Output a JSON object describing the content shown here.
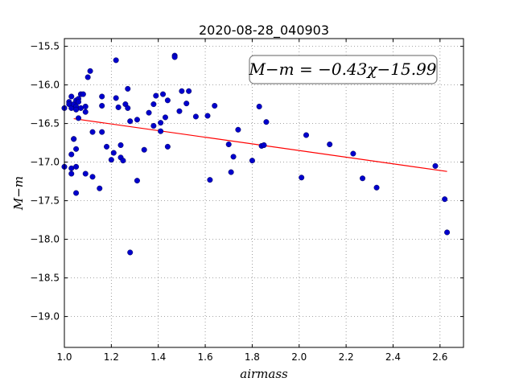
{
  "chart_data": {
    "type": "scatter",
    "title": "2020-08-28_040903",
    "xlabel": "airmass",
    "ylabel": "M−m",
    "xlim": [
      1.0,
      2.7
    ],
    "ylim": [
      -15.4,
      -19.4
    ],
    "x_ticks": [
      "1.0",
      "1.2",
      "1.4",
      "1.6",
      "1.8",
      "2.0",
      "2.2",
      "2.4",
      "2.6"
    ],
    "y_ticks": [
      "−15.5",
      "−16.0",
      "−16.5",
      "−17.0",
      "−17.5",
      "−18.0",
      "−18.5",
      "−19.0"
    ],
    "grid": true,
    "annotation": "M−m = −0.43χ−15.99",
    "point_color": "#0000cc",
    "fit_color": "#ff0000",
    "fit": {
      "slope": -0.43,
      "intercept": -15.99,
      "x_range": [
        1.04,
        2.63
      ]
    },
    "points": [
      [
        1.0,
        -16.3
      ],
      [
        1.0,
        -17.06
      ],
      [
        1.02,
        -16.22
      ],
      [
        1.02,
        -16.25
      ],
      [
        1.03,
        -16.15
      ],
      [
        1.03,
        -16.3
      ],
      [
        1.03,
        -16.9
      ],
      [
        1.03,
        -17.08
      ],
      [
        1.03,
        -17.15
      ],
      [
        1.04,
        -16.25
      ],
      [
        1.04,
        -16.7
      ],
      [
        1.04,
        -16.7
      ],
      [
        1.05,
        -16.28
      ],
      [
        1.05,
        -16.32
      ],
      [
        1.05,
        -16.2
      ],
      [
        1.05,
        -16.83
      ],
      [
        1.05,
        -17.06
      ],
      [
        1.05,
        -17.4
      ],
      [
        1.06,
        -16.18
      ],
      [
        1.06,
        -16.22
      ],
      [
        1.06,
        -16.43
      ],
      [
        1.07,
        -16.12
      ],
      [
        1.07,
        -16.3
      ],
      [
        1.08,
        -16.12
      ],
      [
        1.09,
        -16.28
      ],
      [
        1.09,
        -16.35
      ],
      [
        1.09,
        -17.15
      ],
      [
        1.1,
        -15.9
      ],
      [
        1.11,
        -15.82
      ],
      [
        1.12,
        -16.61
      ],
      [
        1.12,
        -17.19
      ],
      [
        1.15,
        -17.34
      ],
      [
        1.16,
        -16.15
      ],
      [
        1.16,
        -16.27
      ],
      [
        1.16,
        -16.61
      ],
      [
        1.18,
        -16.8
      ],
      [
        1.2,
        -16.97
      ],
      [
        1.21,
        -16.88
      ],
      [
        1.22,
        -15.68
      ],
      [
        1.22,
        -16.17
      ],
      [
        1.23,
        -16.29
      ],
      [
        1.24,
        -16.78
      ],
      [
        1.24,
        -16.94
      ],
      [
        1.25,
        -16.98
      ],
      [
        1.26,
        -16.25
      ],
      [
        1.27,
        -16.05
      ],
      [
        1.27,
        -16.3
      ],
      [
        1.28,
        -16.47
      ],
      [
        1.28,
        -18.17
      ],
      [
        1.31,
        -16.45
      ],
      [
        1.31,
        -17.24
      ],
      [
        1.34,
        -16.84
      ],
      [
        1.36,
        -16.36
      ],
      [
        1.38,
        -16.25
      ],
      [
        1.38,
        -16.53
      ],
      [
        1.39,
        -16.14
      ],
      [
        1.41,
        -16.6
      ],
      [
        1.41,
        -16.49
      ],
      [
        1.42,
        -16.12
      ],
      [
        1.43,
        -16.42
      ],
      [
        1.44,
        -16.2
      ],
      [
        1.44,
        -16.8
      ],
      [
        1.47,
        -15.62
      ],
      [
        1.47,
        -15.64
      ],
      [
        1.49,
        -16.34
      ],
      [
        1.5,
        -16.08
      ],
      [
        1.52,
        -16.24
      ],
      [
        1.53,
        -16.08
      ],
      [
        1.56,
        -16.41
      ],
      [
        1.61,
        -16.4
      ],
      [
        1.62,
        -17.23
      ],
      [
        1.64,
        -16.27
      ],
      [
        1.7,
        -16.77
      ],
      [
        1.71,
        -17.13
      ],
      [
        1.72,
        -16.93
      ],
      [
        1.74,
        -16.58
      ],
      [
        1.8,
        -16.98
      ],
      [
        1.83,
        -16.28
      ],
      [
        1.84,
        -16.79
      ],
      [
        1.85,
        -16.78
      ],
      [
        1.86,
        -16.48
      ],
      [
        2.01,
        -17.2
      ],
      [
        2.03,
        -16.65
      ],
      [
        2.13,
        -16.77
      ],
      [
        2.23,
        -16.89
      ],
      [
        2.27,
        -17.21
      ],
      [
        2.33,
        -17.33
      ],
      [
        2.58,
        -17.05
      ],
      [
        2.62,
        -17.48
      ],
      [
        2.63,
        -17.91
      ]
    ]
  }
}
